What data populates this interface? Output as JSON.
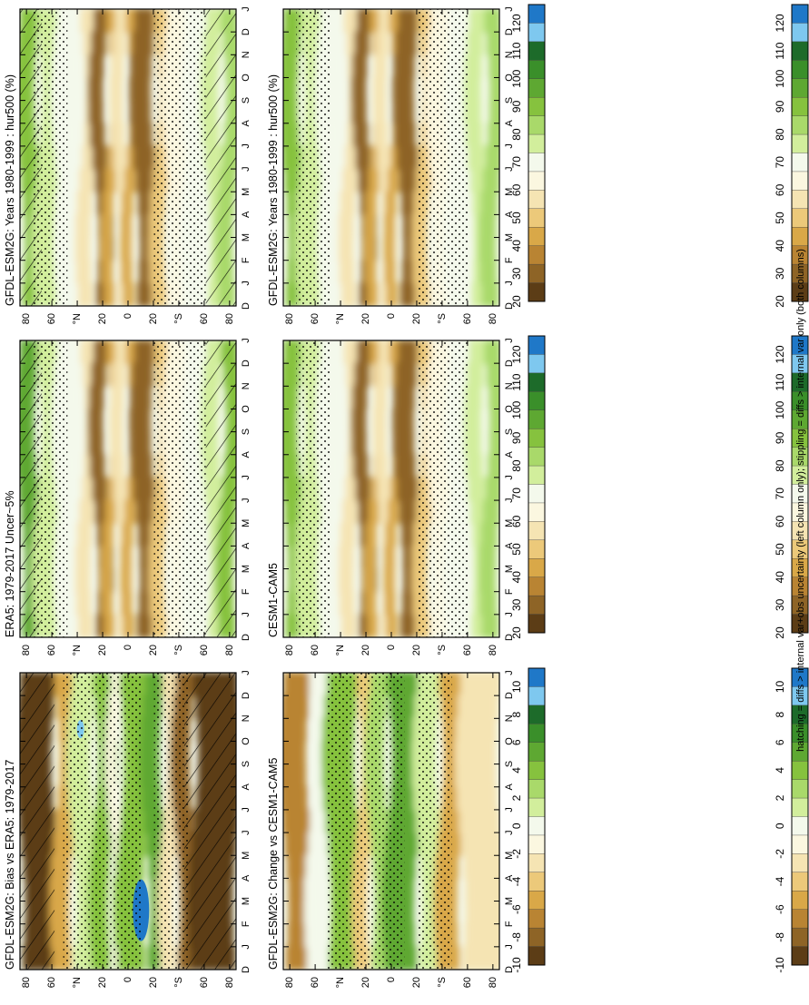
{
  "footnote": "hatching = diffs > internal var+obs uncertainty (left column only); stippling = diffs > internal var only (both columns)",
  "months": [
    "D",
    "J",
    "F",
    "M",
    "A",
    "M",
    "J",
    "J",
    "A",
    "S",
    "O",
    "N",
    "D",
    "J"
  ],
  "latitude_ticks": [
    "80",
    "60",
    "°N",
    "20",
    "0",
    "20",
    "°S",
    "60",
    "80"
  ],
  "abs_scale": {
    "labels": [
      "120",
      "110",
      "100",
      "90",
      "80",
      "70",
      "60",
      "50",
      "40",
      "30",
      "20"
    ],
    "colors": [
      "#1f78c8",
      "#7ec8ef",
      "#1d6b2a",
      "#3a8f2a",
      "#5ea832",
      "#86c23e",
      "#a9d96a",
      "#d2ee9c",
      "#f4f9ec",
      "#fbf7e0",
      "#f5e4b3",
      "#ecc97a",
      "#d9a848",
      "#b98433",
      "#8e6426",
      "#5c3d16"
    ]
  },
  "diff_scale": {
    "labels": [
      "10",
      "8",
      "6",
      "4",
      "2",
      "0",
      "-2",
      "-4",
      "-6",
      "-8",
      "-10"
    ],
    "colors": [
      "#1f78c8",
      "#7ec8ef",
      "#1d6b2a",
      "#3a8f2a",
      "#5ea832",
      "#86c23e",
      "#a9d96a",
      "#d2ee9c",
      "#f4f9ec",
      "#fbf7e0",
      "#f5e4b3",
      "#ecc97a",
      "#d9a848",
      "#b98433",
      "#8e6426",
      "#5c3d16"
    ]
  },
  "chart_data": [
    {
      "type": "heatmap",
      "title": "GFDL-ESM2G: Years 1980-1999 : hur500 (%)",
      "x": [
        "D",
        "J",
        "F",
        "M",
        "A",
        "M",
        "J",
        "J",
        "A",
        "S",
        "O",
        "N",
        "D",
        "J"
      ],
      "y": [
        "80",
        "60",
        "°N",
        "20",
        "0",
        "20",
        "°S",
        "60",
        "80"
      ],
      "legend": [
        "120",
        "110",
        "100",
        "90",
        "80",
        "70",
        "60",
        "50",
        "40",
        "30",
        "20"
      ],
      "hatching": true,
      "stippling": true,
      "rotated": true
    },
    {
      "type": "heatmap",
      "title": "GFDL-ESM2G: Years 1980-1999 : hur500 (%)",
      "x": [
        "D",
        "J",
        "F",
        "M",
        "A",
        "M",
        "J",
        "J",
        "A",
        "S",
        "O",
        "N",
        "D",
        "J"
      ],
      "y": [
        "80",
        "60",
        "°N",
        "20",
        "0",
        "20",
        "°S",
        "60",
        "80"
      ],
      "legend": [
        "120",
        "110",
        "100",
        "90",
        "80",
        "70",
        "60",
        "50",
        "40",
        "30",
        "20"
      ],
      "hatching": false,
      "stippling": true,
      "rotated": true
    },
    {
      "type": "heatmap",
      "title": "ERA5: 1979-2017 Uncer~5%",
      "x": [
        "D",
        "J",
        "F",
        "M",
        "A",
        "M",
        "J",
        "J",
        "A",
        "S",
        "O",
        "N",
        "D",
        "J"
      ],
      "y": [
        "80",
        "60",
        "°N",
        "20",
        "0",
        "20",
        "°S",
        "60",
        "80"
      ],
      "legend": [
        "120",
        "110",
        "100",
        "90",
        "80",
        "70",
        "60",
        "50",
        "40",
        "30",
        "20"
      ],
      "hatching": true,
      "stippling": true,
      "rotated": true
    },
    {
      "type": "heatmap",
      "title": "CESM1-CAM5",
      "x": [
        "D",
        "J",
        "F",
        "M",
        "A",
        "M",
        "J",
        "J",
        "A",
        "S",
        "O",
        "N",
        "D",
        "J"
      ],
      "y": [
        "80",
        "60",
        "°N",
        "20",
        "0",
        "20",
        "°S",
        "60",
        "80"
      ],
      "legend": [
        "120",
        "110",
        "100",
        "90",
        "80",
        "70",
        "60",
        "50",
        "40",
        "30",
        "20"
      ],
      "hatching": false,
      "stippling": true,
      "rotated": true
    },
    {
      "type": "heatmap",
      "title": "GFDL-ESM2G: Bias vs ERA5: 1979-2017",
      "x": [
        "D",
        "J",
        "F",
        "M",
        "A",
        "M",
        "J",
        "J",
        "A",
        "S",
        "O",
        "N",
        "D",
        "J"
      ],
      "y": [
        "80",
        "60",
        "°N",
        "20",
        "0",
        "20",
        "°S",
        "60",
        "80"
      ],
      "legend": [
        "10",
        "8",
        "6",
        "4",
        "2",
        "0",
        "-2",
        "-4",
        "-6",
        "-8",
        "-10"
      ],
      "hatching": true,
      "stippling": true,
      "rotated": true
    },
    {
      "type": "heatmap",
      "title": "GFDL-ESM2G: Change vs CESM1-CAM5",
      "x": [
        "D",
        "J",
        "F",
        "M",
        "A",
        "M",
        "J",
        "J",
        "A",
        "S",
        "O",
        "N",
        "D",
        "J"
      ],
      "y": [
        "80",
        "60",
        "°N",
        "20",
        "0",
        "20",
        "°S",
        "60",
        "80"
      ],
      "legend": [
        "10",
        "8",
        "6",
        "4",
        "2",
        "0",
        "-2",
        "-4",
        "-6",
        "-8",
        "-10"
      ],
      "hatching": false,
      "stippling": true,
      "rotated": true
    }
  ]
}
